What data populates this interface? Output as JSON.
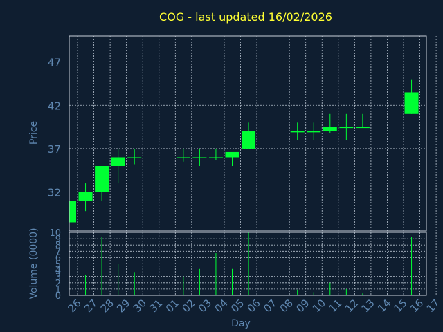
{
  "chart_data": {
    "type": "candlestick",
    "title": "COG - last updated 16/02/2026",
    "ylabel": "Price",
    "volume_label": "Volume (0000)",
    "xlabel": "Day",
    "ylim": [
      27.5,
      50
    ],
    "price_ticks": [
      32,
      37,
      42,
      47
    ],
    "volume_ylim": [
      0,
      10
    ],
    "volume_ticks": [
      0,
      1,
      2,
      3,
      4,
      5,
      6,
      7,
      8,
      9,
      10
    ],
    "volume_tick_labels": [
      "0",
      "1",
      "2",
      "3",
      "4",
      "5",
      "6",
      "7",
      "8",
      "9",
      "10"
    ],
    "x_tick_labels": [
      "26",
      "27",
      "28",
      "29",
      "30",
      "31",
      "01",
      "02",
      "03",
      "04",
      "05",
      "06",
      "07",
      "08",
      "09",
      "10",
      "11",
      "12",
      "13",
      "14",
      "15",
      "16",
      "17"
    ],
    "bar_color": "#00ff33",
    "candles": [
      {
        "day": "26",
        "open": 28.5,
        "close": 31.0,
        "high": 31.0,
        "low": 28.5,
        "volume": 0
      },
      {
        "day": "27",
        "open": 31.0,
        "close": 32.0,
        "high": 33.0,
        "low": 29.8,
        "volume": 3.3
      },
      {
        "day": "28",
        "open": 32.0,
        "close": 35.0,
        "high": 35.0,
        "low": 31.0,
        "volume": 9.3
      },
      {
        "day": "29",
        "open": 35.0,
        "close": 36.0,
        "high": 37.0,
        "low": 33.0,
        "volume": 5.0
      },
      {
        "day": "30",
        "open": 36.0,
        "close": 36.0,
        "high": 37.0,
        "low": 35.2,
        "volume": 3.7
      },
      {
        "day": "02",
        "open": 36.0,
        "close": 36.0,
        "high": 37.0,
        "low": 35.5,
        "volume": 3.0
      },
      {
        "day": "03",
        "open": 36.0,
        "close": 36.0,
        "high": 37.0,
        "low": 35.0,
        "volume": 4.2
      },
      {
        "day": "04",
        "open": 36.0,
        "close": 36.0,
        "high": 37.0,
        "low": 35.7,
        "volume": 6.7
      },
      {
        "day": "05",
        "open": 36.0,
        "close": 36.6,
        "high": 36.6,
        "low": 35.0,
        "volume": 4.2
      },
      {
        "day": "06",
        "open": 37.0,
        "close": 39.0,
        "high": 40.0,
        "low": 37.0,
        "volume": 10.0
      },
      {
        "day": "09",
        "open": 39.0,
        "close": 39.0,
        "high": 40.0,
        "low": 38.0,
        "volume": 0.9
      },
      {
        "day": "10",
        "open": 39.0,
        "close": 39.0,
        "high": 40.0,
        "low": 38.0,
        "volume": 0.5
      },
      {
        "day": "11",
        "open": 39.0,
        "close": 39.5,
        "high": 41.0,
        "low": 38.8,
        "volume": 2.0
      },
      {
        "day": "12",
        "open": 39.5,
        "close": 39.5,
        "high": 41.0,
        "low": 38.0,
        "volume": 1.0
      },
      {
        "day": "13",
        "open": 39.5,
        "close": 39.5,
        "high": 41.0,
        "low": 39.5,
        "volume": 0.3
      },
      {
        "day": "16",
        "open": 41.0,
        "close": 43.5,
        "high": 45.0,
        "low": 41.0,
        "volume": 9.3
      }
    ],
    "grid": true
  }
}
